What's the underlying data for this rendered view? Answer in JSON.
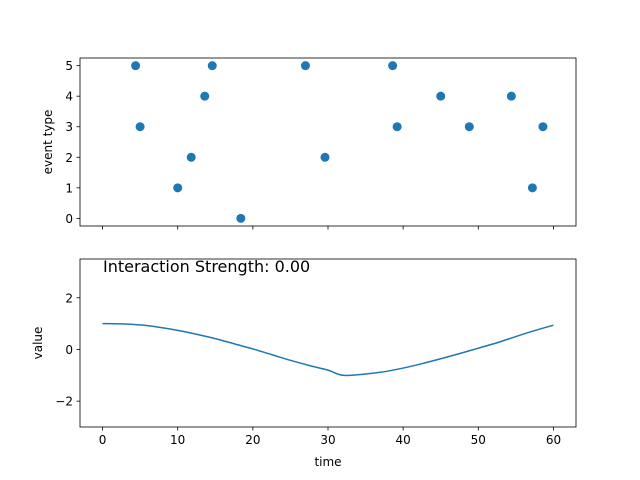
{
  "chart_data": [
    {
      "type": "scatter",
      "xlabel": "",
      "ylabel": "event type",
      "xlim": [
        -3,
        63
      ],
      "ylim": [
        -0.25,
        5.25
      ],
      "xticks": [
        0,
        10,
        20,
        30,
        40,
        50,
        60
      ],
      "show_xticklabels": false,
      "yticks": [
        0,
        1,
        2,
        3,
        4,
        5
      ],
      "yticklabels": [
        "0",
        "1",
        "2",
        "3",
        "4",
        "5"
      ],
      "grid": false,
      "color": "#1f77b4",
      "series": [
        {
          "points": [
            {
              "x": 4.4,
              "y": 5
            },
            {
              "x": 5.0,
              "y": 3
            },
            {
              "x": 10.0,
              "y": 1
            },
            {
              "x": 11.8,
              "y": 2
            },
            {
              "x": 13.6,
              "y": 4
            },
            {
              "x": 14.6,
              "y": 5
            },
            {
              "x": 18.4,
              "y": 0
            },
            {
              "x": 27.0,
              "y": 5
            },
            {
              "x": 29.6,
              "y": 2
            },
            {
              "x": 38.6,
              "y": 5
            },
            {
              "x": 39.2,
              "y": 3
            },
            {
              "x": 45.0,
              "y": 4
            },
            {
              "x": 48.8,
              "y": 3
            },
            {
              "x": 54.4,
              "y": 4
            },
            {
              "x": 57.2,
              "y": 1
            },
            {
              "x": 58.6,
              "y": 3
            }
          ]
        }
      ]
    },
    {
      "type": "line",
      "xlabel": "time",
      "ylabel": "value",
      "annotation": "Interaction Strength: 0.00",
      "xlim": [
        -3,
        63
      ],
      "ylim": [
        -3,
        3.5
      ],
      "xticks": [
        0,
        10,
        20,
        30,
        40,
        50,
        60
      ],
      "xticklabels": [
        "0",
        "10",
        "20",
        "30",
        "40",
        "50",
        "60"
      ],
      "yticks": [
        -2,
        0,
        2
      ],
      "yticklabels": [
        "−2",
        "0",
        "2"
      ],
      "grid": false,
      "color": "#1f77b4",
      "series": [
        {
          "x": [
            0,
            2.5,
            5,
            7.5,
            10,
            12.5,
            15,
            17.5,
            20,
            22.5,
            25,
            27.5,
            30,
            32,
            35,
            37.5,
            40,
            42.5,
            45,
            47.5,
            50,
            52.5,
            55,
            57.5,
            60
          ],
          "y": [
            1.0,
            0.99,
            0.95,
            0.86,
            0.74,
            0.59,
            0.42,
            0.22,
            0.02,
            -0.2,
            -0.42,
            -0.62,
            -0.8,
            -1.0,
            -0.95,
            -0.86,
            -0.72,
            -0.55,
            -0.36,
            -0.16,
            0.05,
            0.26,
            0.5,
            0.73,
            0.94
          ]
        }
      ]
    }
  ]
}
